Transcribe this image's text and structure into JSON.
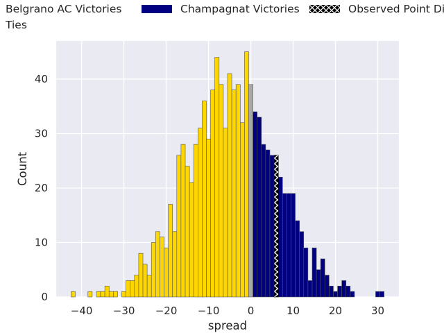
{
  "chart_data": {
    "type": "bar",
    "title": "",
    "xlabel": "spread",
    "ylabel": "Count",
    "xlim": [
      -46,
      35
    ],
    "ylim": [
      0,
      47
    ],
    "xticks": [
      -40,
      -30,
      -20,
      -10,
      0,
      10,
      20,
      30
    ],
    "yticks": [
      0,
      10,
      20,
      30,
      40
    ],
    "grid": true,
    "legend_position": "top-left, above plot",
    "colors": {
      "belgrano": "#ffd700",
      "champagnat": "#000080",
      "tie": "#a9a9a9",
      "background": "#eaeaf2",
      "edge": "#555555"
    },
    "series": [
      {
        "name": "Belgrano AC Victories",
        "color": "#ffd700",
        "x": [
          -42,
          -38,
          -36,
          -35,
          -34,
          -33,
          -32,
          -30,
          -29,
          -28,
          -27,
          -26,
          -25,
          -24,
          -23,
          -22,
          -21,
          -20,
          -19,
          -18,
          -17,
          -16,
          -15,
          -14,
          -13,
          -12,
          -11,
          -10,
          -9,
          -8,
          -7,
          -6,
          -5,
          -4,
          -3,
          -2,
          -1
        ],
        "values": [
          1,
          1,
          1,
          1,
          2,
          1,
          1,
          1,
          3,
          3,
          4,
          8,
          6,
          4,
          10,
          12,
          11,
          9,
          17,
          12,
          26,
          28,
          24,
          21,
          28,
          31,
          36,
          29,
          38,
          44,
          39,
          31,
          41,
          38,
          39,
          32,
          45
        ]
      },
      {
        "name": "Ties",
        "color": "#a9a9a9",
        "x": [
          0
        ],
        "values": [
          39
        ]
      },
      {
        "name": "Champagnat Victories",
        "color": "#000080",
        "x": [
          1,
          2,
          3,
          4,
          5,
          6,
          7,
          8,
          9,
          10,
          11,
          12,
          13,
          14,
          15,
          16,
          17,
          18,
          19,
          20,
          21,
          22,
          23,
          24,
          30,
          31
        ],
        "values": [
          34,
          33,
          28,
          27,
          26,
          26,
          22,
          19,
          19,
          19,
          14,
          12,
          9,
          3,
          9,
          5,
          7,
          4,
          2,
          1,
          2,
          3,
          2,
          1,
          1,
          1
        ]
      }
    ],
    "observed_point_difference": {
      "x": 6,
      "value": 26
    }
  },
  "legend": {
    "items": [
      {
        "label": "Belgrano AC Victories"
      },
      {
        "label": "Champagnat Victories"
      },
      {
        "label": "Observed Point Difference"
      },
      {
        "label": "Ties"
      }
    ]
  }
}
